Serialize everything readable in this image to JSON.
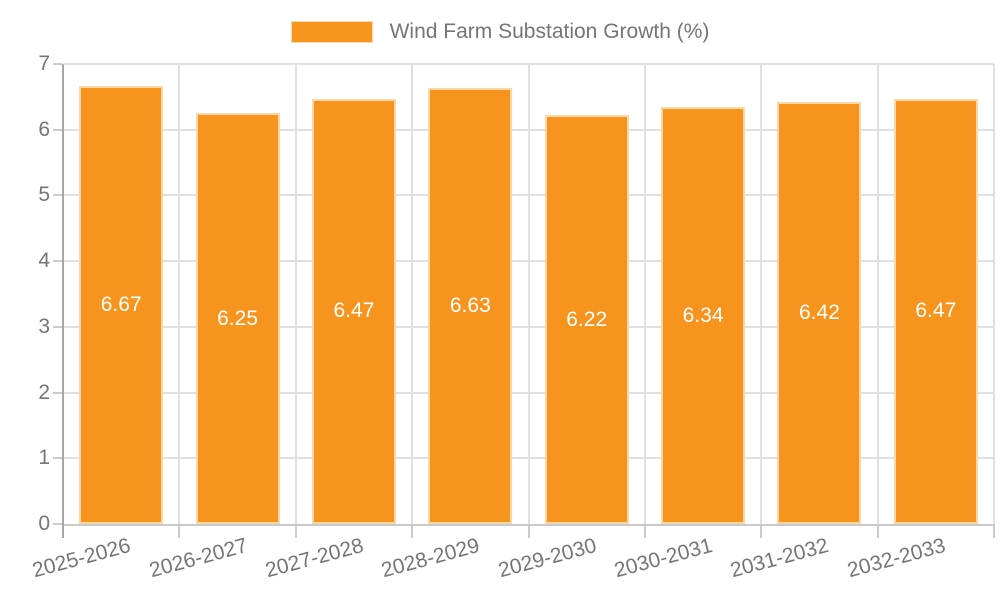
{
  "chart_data": {
    "type": "bar",
    "title": "",
    "legend": {
      "label": "Wind Farm Substation Growth (%)",
      "position": "top-center"
    },
    "categories": [
      "2025-2026",
      "2026-2027",
      "2027-2028",
      "2028-2029",
      "2029-2030",
      "2030-2031",
      "2031-2032",
      "2032-2033"
    ],
    "values": [
      6.67,
      6.25,
      6.47,
      6.63,
      6.22,
      6.34,
      6.42,
      6.47
    ],
    "value_labels": [
      "6.67",
      "6.25",
      "6.47",
      "6.63",
      "6.22",
      "6.34",
      "6.42",
      "6.47"
    ],
    "xlabel": "",
    "ylabel": "",
    "ylim": [
      0,
      7
    ],
    "yticks": [
      0,
      1,
      2,
      3,
      4,
      5,
      6,
      7
    ],
    "grid": true,
    "x_tick_rotation_deg": -15,
    "colors": {
      "bar_fill": "#f7941e",
      "bar_edge": "#fbd8a5",
      "gridline": "#e0e0e0",
      "y_axis_line": "#a6a6a6",
      "x_axis_line": "#c9c9c9",
      "tick_mark": "#cccccc",
      "tick_label": "#757575",
      "value_label": "#ffffff",
      "background": "#ffffff"
    }
  }
}
